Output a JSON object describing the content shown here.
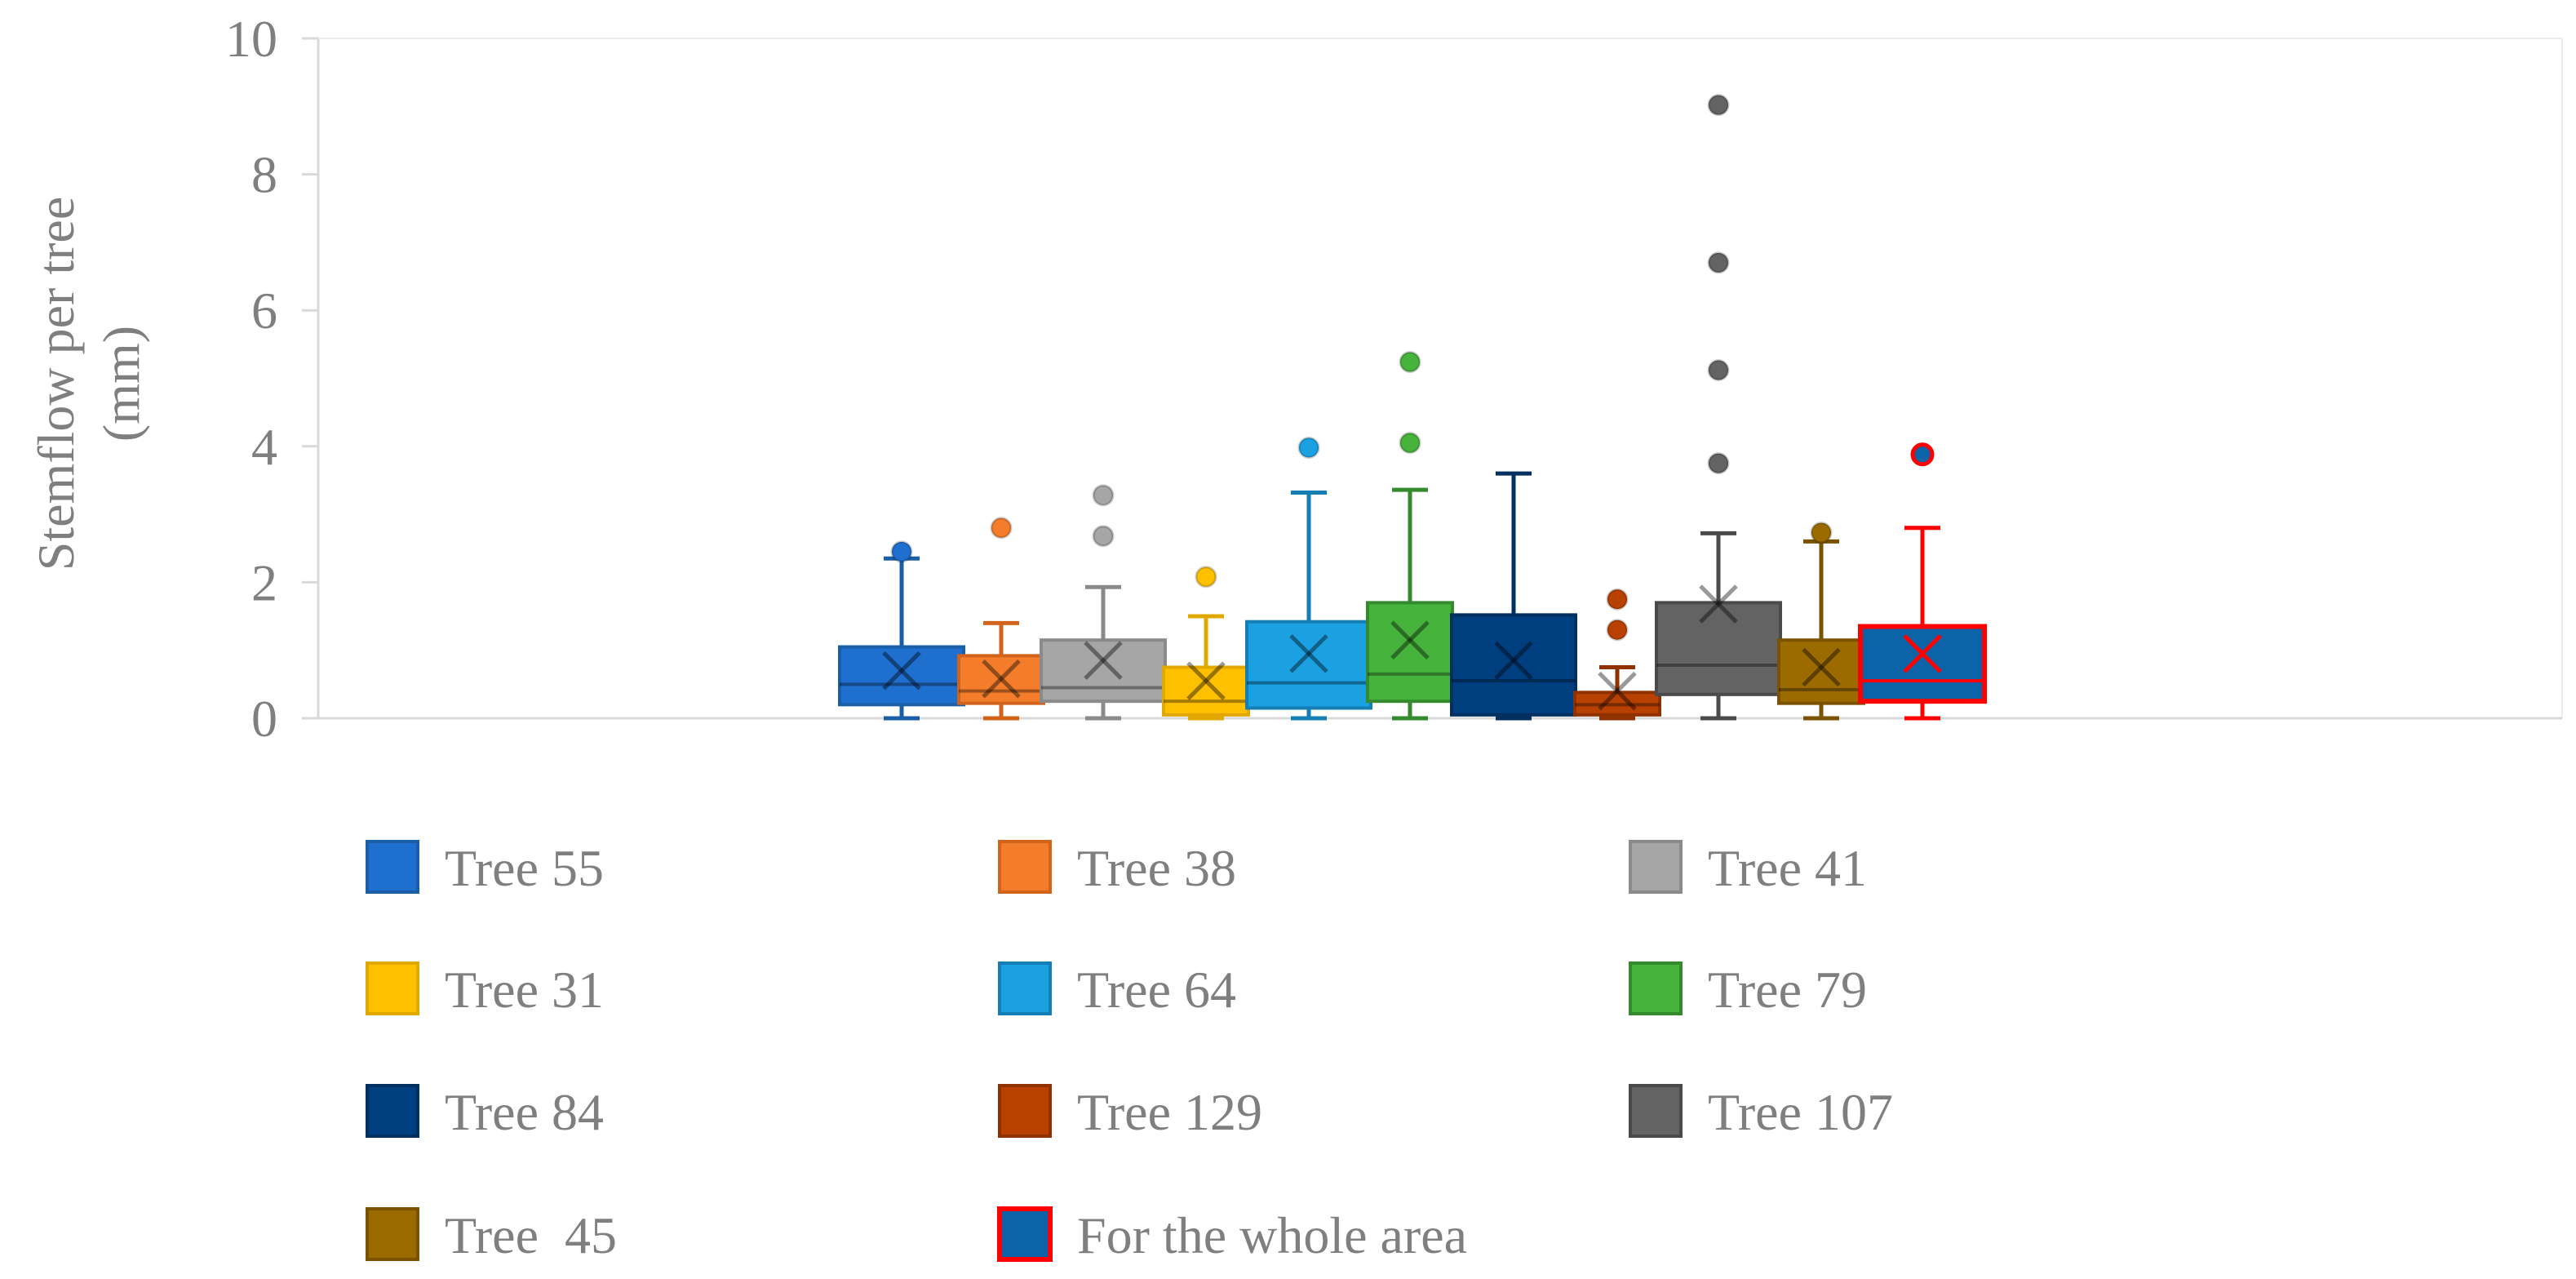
{
  "chart_data": {
    "type": "boxplot",
    "title": "",
    "xlabel": "",
    "ylabel_lines": [
      "Stemflow per tree",
      "(mm)"
    ],
    "ylim": [
      0,
      10
    ],
    "yticks": [
      "0",
      "2",
      "4",
      "6",
      "8",
      "10"
    ],
    "grid": false,
    "legend_position": "bottom",
    "series": [
      {
        "name": "Tree 55",
        "fill": "#1f6fcf",
        "stroke": "#1a5ea8",
        "min": 0.0,
        "q1": 0.2,
        "median": 0.5,
        "q3": 1.05,
        "whisker_high": 2.35,
        "mean": 0.7,
        "outliers": [
          2.45
        ]
      },
      {
        "name": "Tree 38",
        "fill": "#f47d2c",
        "stroke": "#d1641a",
        "min": 0.0,
        "q1": 0.22,
        "median": 0.4,
        "q3": 0.92,
        "whisker_high": 1.4,
        "mean": 0.58,
        "outliers": [
          2.8
        ]
      },
      {
        "name": "Tree 41",
        "fill": "#a6a6a6",
        "stroke": "#8a8a8a",
        "min": 0.0,
        "q1": 0.25,
        "median": 0.45,
        "q3": 1.15,
        "whisker_high": 1.93,
        "mean": 0.85,
        "outliers": [
          2.68,
          3.28
        ]
      },
      {
        "name": "Tree 31",
        "fill": "#ffc000",
        "stroke": "#e0a800",
        "min": 0.0,
        "q1": 0.05,
        "median": 0.25,
        "q3": 0.75,
        "whisker_high": 1.5,
        "mean": 0.55,
        "outliers": [
          2.08
        ]
      },
      {
        "name": "Tree 64",
        "fill": "#1ba1e2",
        "stroke": "#157fb5",
        "min": 0.0,
        "q1": 0.15,
        "median": 0.52,
        "q3": 1.42,
        "whisker_high": 3.32,
        "mean": 0.95,
        "outliers": [
          3.98
        ]
      },
      {
        "name": "Tree 79",
        "fill": "#46b43c",
        "stroke": "#348a2c",
        "min": 0.0,
        "q1": 0.25,
        "median": 0.65,
        "q3": 1.7,
        "whisker_high": 3.36,
        "mean": 1.15,
        "outliers": [
          4.05,
          5.24
        ]
      },
      {
        "name": "Tree 84",
        "fill": "#003f7f",
        "stroke": "#002f60",
        "min": 0.0,
        "q1": 0.05,
        "median": 0.55,
        "q3": 1.52,
        "whisker_high": 3.6,
        "mean": 0.85,
        "outliers": []
      },
      {
        "name": "Tree 129",
        "fill": "#b84100",
        "stroke": "#8f3200",
        "min": 0.0,
        "q1": 0.05,
        "median": 0.2,
        "q3": 0.38,
        "whisker_high": 0.75,
        "mean": 0.4,
        "outliers": [
          1.3,
          1.75
        ]
      },
      {
        "name": "Tree 107",
        "fill": "#636363",
        "stroke": "#4a4a4a",
        "min": 0.0,
        "q1": 0.35,
        "median": 0.78,
        "q3": 1.7,
        "whisker_high": 2.72,
        "mean": 1.68,
        "outliers": [
          3.75,
          5.12,
          6.7,
          9.02
        ]
      },
      {
        "name": "Tree  45",
        "fill": "#9c6b00",
        "stroke": "#7a5200",
        "min": 0.0,
        "q1": 0.22,
        "median": 0.42,
        "q3": 1.15,
        "whisker_high": 2.6,
        "mean": 0.75,
        "outliers": [
          2.73
        ]
      },
      {
        "name": "For the whole area",
        "fill": "#0b63a8",
        "stroke": "#ff0000",
        "min": 0.0,
        "q1": 0.25,
        "median": 0.55,
        "q3": 1.35,
        "whisker_high": 2.8,
        "mean": 0.95,
        "outliers": [
          3.88
        ]
      }
    ]
  }
}
